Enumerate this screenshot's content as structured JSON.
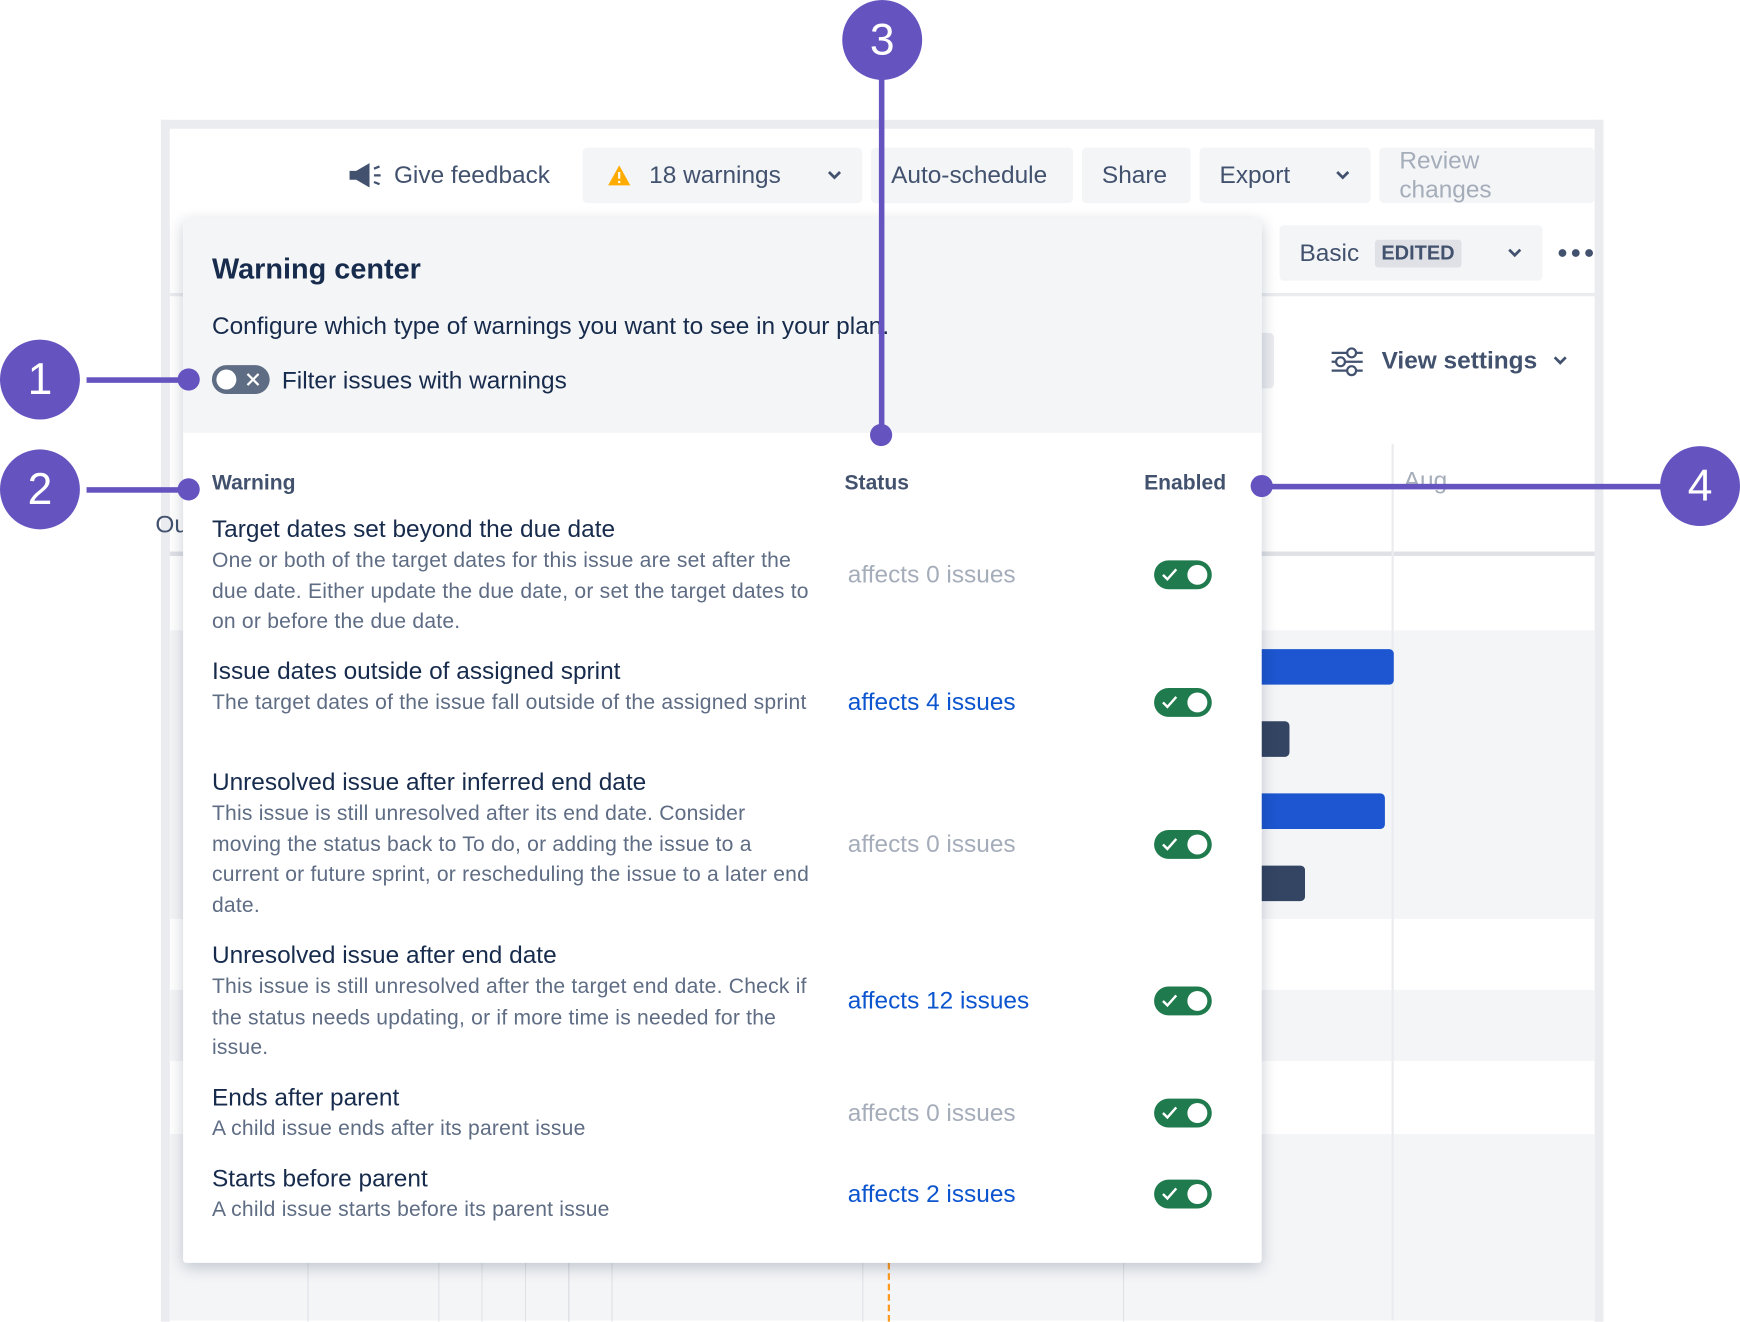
{
  "toolbar": {
    "feedback": "Give feedback",
    "warnings": "18 warnings",
    "auto_schedule": "Auto-schedule",
    "share": "Share",
    "export": "Export",
    "review": "Review changes"
  },
  "view": {
    "name": "Basic",
    "badge": "EDITED",
    "settings": "View settings"
  },
  "timeline": {
    "month": "Aug",
    "column": "Ou"
  },
  "panel": {
    "title": "Warning center",
    "description": "Configure which type of warnings you want to see in your plan.",
    "filter_label": "Filter issues with warnings",
    "filter_enabled": false,
    "headers": {
      "warning": "Warning",
      "status": "Status",
      "enabled": "Enabled"
    },
    "warnings": [
      {
        "title": "Target dates set beyond the due date",
        "description": "One or both of the target dates for this issue are set after the due date. Either update the due date, or set the target dates to on or before the due date.",
        "status": "affects 0 issues",
        "status_color": "#a5adba",
        "enabled": true
      },
      {
        "title": "Issue dates outside of assigned sprint",
        "description": "The target dates of the issue fall outside of the assigned sprint",
        "status": "affects 4 issues",
        "status_color": "#0c55cf",
        "enabled": true
      },
      {
        "title": "Unresolved issue after inferred end date",
        "description": "This issue is still unresolved after its end date. Consider moving the status back to To do, or adding the issue to a current or future sprint, or rescheduling the issue to a later end date.",
        "status": "affects 0 issues",
        "status_color": "#a5adba",
        "enabled": true
      },
      {
        "title": "Unresolved issue after end date",
        "description": "This issue is still unresolved after the target end date. Check if the status needs updating, or if more time is needed for the issue.",
        "status": "affects 12 issues",
        "status_color": "#0c55cf",
        "enabled": true
      },
      {
        "title": "Ends after parent",
        "description": "A child issue ends after its parent issue",
        "status": "affects 0 issues",
        "status_color": "#a5adba",
        "enabled": true
      },
      {
        "title": "Starts before parent",
        "description": "A child issue starts before its parent issue",
        "status": "affects 2 issues",
        "status_color": "#0c55cf",
        "enabled": true
      }
    ]
  },
  "callouts": [
    "1",
    "2",
    "3",
    "4"
  ]
}
